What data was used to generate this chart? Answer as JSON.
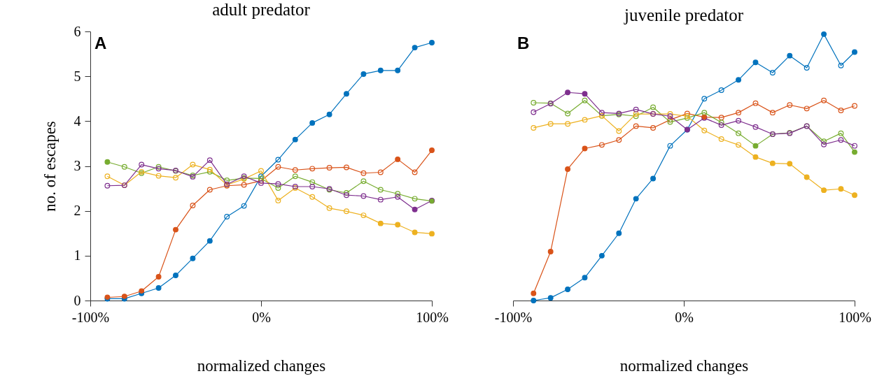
{
  "chart_data": [
    {
      "type": "line",
      "title": "adult predator",
      "xlabel": "normalized changes",
      "ylabel": "no. of escapes",
      "annotations": [
        "A"
      ],
      "x": [
        -90,
        -80,
        -70,
        -60,
        -50,
        -40,
        -30,
        -20,
        -10,
        0,
        10,
        20,
        30,
        40,
        50,
        60,
        70,
        80,
        90,
        100
      ],
      "xlim": [
        -100,
        100
      ],
      "xticks": [
        {
          "value": -100,
          "label": "-100%"
        },
        {
          "value": 0,
          "label": "0%"
        },
        {
          "value": 100,
          "label": "100%"
        }
      ],
      "ylim": [
        0,
        6
      ],
      "yticks": [
        0,
        1,
        2,
        3,
        4,
        5,
        6
      ],
      "grid": false,
      "marker": "circle",
      "line_style": "solid",
      "series": [
        {
          "type": "line",
          "color": "#0072bd",
          "values": [
            0.04,
            0.04,
            0.16,
            0.28,
            0.56,
            0.94,
            1.33,
            1.87,
            2.11,
            2.77,
            3.14,
            3.59,
            3.96,
            4.15,
            4.61,
            5.05,
            5.13,
            5.13,
            5.64,
            5.75
          ]
        },
        {
          "type": "line",
          "color": "#d95319",
          "values": [
            0.07,
            0.09,
            0.21,
            0.53,
            1.58,
            2.12,
            2.47,
            2.56,
            2.58,
            2.67,
            2.98,
            2.91,
            2.94,
            2.96,
            2.97,
            2.84,
            2.86,
            3.15,
            2.86,
            3.35
          ]
        },
        {
          "type": "line",
          "color": "#77ac30",
          "values": [
            3.09,
            2.98,
            2.84,
            2.98,
            2.89,
            2.79,
            2.87,
            2.68,
            2.73,
            2.72,
            2.51,
            2.77,
            2.64,
            2.47,
            2.4,
            2.66,
            2.47,
            2.38,
            2.27,
            2.22
          ]
        },
        {
          "type": "line",
          "color": "#edb120",
          "values": [
            2.77,
            2.57,
            2.87,
            2.78,
            2.74,
            3.03,
            2.92,
            2.58,
            2.71,
            2.89,
            2.23,
            2.51,
            2.31,
            2.06,
            1.99,
            1.9,
            1.72,
            1.69,
            1.52,
            1.49
          ]
        },
        {
          "type": "line",
          "color": "#7e2f8e",
          "values": [
            2.56,
            2.57,
            3.03,
            2.94,
            2.9,
            2.76,
            3.13,
            2.59,
            2.77,
            2.62,
            2.6,
            2.54,
            2.54,
            2.49,
            2.35,
            2.33,
            2.25,
            2.31,
            2.03,
            2.23
          ]
        },
        {
          "type": "scatter",
          "color": "#0072bd",
          "values": [
            0.04,
            0.04,
            0.16,
            0.28,
            0.56,
            0.94,
            1.33,
            null,
            null,
            null,
            null,
            3.59,
            3.96,
            4.15,
            4.61,
            5.05,
            5.13,
            5.13,
            5.64,
            5.75
          ]
        },
        {
          "type": "scatter",
          "color": "#d95319",
          "values": [
            0.07,
            0.09,
            0.21,
            0.53,
            1.58,
            null,
            null,
            null,
            null,
            null,
            null,
            null,
            null,
            null,
            null,
            null,
            null,
            3.15,
            null,
            3.35
          ]
        },
        {
          "type": "scatter",
          "color": "#77ac30",
          "values": [
            3.09,
            null,
            null,
            null,
            null,
            null,
            null,
            null,
            null,
            null,
            null,
            null,
            null,
            null,
            null,
            null,
            null,
            null,
            null,
            2.22
          ]
        },
        {
          "type": "scatter",
          "color": "#edb120",
          "values": [
            null,
            null,
            null,
            null,
            null,
            null,
            null,
            null,
            null,
            null,
            null,
            null,
            null,
            null,
            null,
            null,
            1.72,
            1.69,
            1.52,
            1.49
          ]
        },
        {
          "type": "scatter",
          "color": "#7e2f8e",
          "values": [
            null,
            null,
            null,
            null,
            null,
            null,
            null,
            null,
            null,
            null,
            null,
            null,
            null,
            null,
            null,
            null,
            null,
            null,
            2.03,
            null
          ]
        }
      ]
    },
    {
      "type": "line",
      "title": "juvenile predator",
      "xlabel": "normalized changes",
      "annotations": [
        "B"
      ],
      "x": [
        -88,
        -78,
        -68,
        -58,
        -48,
        -38,
        -28,
        -18,
        -8,
        2,
        12,
        22,
        32,
        42,
        52,
        62,
        72,
        82,
        92,
        100
      ],
      "xlim": [
        -100,
        100
      ],
      "xticks": [
        {
          "value": -100,
          "label": "-100%"
        },
        {
          "value": 0,
          "label": "0%"
        },
        {
          "value": 100,
          "label": "100%"
        }
      ],
      "ylim": [
        0,
        6
      ],
      "tick_labels": "x",
      "grid": false,
      "marker": "circle",
      "line_style": "solid",
      "series": [
        {
          "type": "line",
          "color": "#0072bd",
          "values": [
            0.0,
            0.06,
            0.25,
            0.51,
            1.0,
            1.5,
            2.27,
            2.72,
            3.45,
            3.81,
            4.5,
            4.69,
            4.92,
            5.31,
            5.08,
            5.46,
            5.19,
            5.94,
            5.24,
            5.54
          ]
        },
        {
          "type": "line",
          "color": "#d95319",
          "values": [
            0.16,
            1.09,
            2.93,
            3.39,
            3.47,
            3.58,
            3.89,
            3.85,
            4.03,
            4.17,
            4.09,
            4.08,
            4.19,
            4.4,
            4.19,
            4.36,
            4.28,
            4.46,
            4.24,
            4.34
          ]
        },
        {
          "type": "line",
          "color": "#77ac30",
          "values": [
            4.41,
            4.4,
            4.17,
            4.46,
            4.12,
            4.15,
            4.11,
            4.31,
            3.98,
            4.07,
            4.19,
            3.97,
            3.73,
            3.45,
            3.71,
            3.74,
            3.89,
            3.55,
            3.73,
            3.31
          ]
        },
        {
          "type": "line",
          "color": "#edb120",
          "values": [
            3.85,
            3.94,
            3.94,
            4.03,
            4.12,
            3.78,
            4.16,
            4.16,
            4.16,
            4.11,
            3.79,
            3.6,
            3.47,
            3.2,
            3.06,
            3.05,
            2.75,
            2.46,
            2.49,
            2.35
          ]
        },
        {
          "type": "line",
          "color": "#7e2f8e",
          "values": [
            4.2,
            4.39,
            4.64,
            4.61,
            4.19,
            4.17,
            4.26,
            4.16,
            4.11,
            3.81,
            4.07,
            3.91,
            4.01,
            3.87,
            3.71,
            3.73,
            3.89,
            3.48,
            3.58,
            3.45
          ]
        },
        {
          "type": "scatter",
          "color": "#0072bd",
          "values": [
            0.0,
            0.06,
            0.25,
            0.51,
            1.0,
            1.5,
            2.27,
            2.72,
            null,
            null,
            null,
            null,
            4.92,
            5.31,
            null,
            5.46,
            null,
            5.94,
            null,
            5.54
          ]
        },
        {
          "type": "scatter",
          "color": "#d95319",
          "values": [
            0.16,
            1.09,
            2.93,
            3.39,
            null,
            null,
            null,
            null,
            null,
            null,
            4.09,
            null,
            null,
            null,
            null,
            null,
            null,
            null,
            null,
            null
          ]
        },
        {
          "type": "scatter",
          "color": "#77ac30",
          "values": [
            null,
            null,
            null,
            null,
            null,
            null,
            null,
            null,
            null,
            null,
            null,
            null,
            null,
            3.45,
            null,
            null,
            null,
            null,
            null,
            3.31
          ]
        },
        {
          "type": "scatter",
          "color": "#edb120",
          "values": [
            null,
            null,
            null,
            null,
            null,
            null,
            null,
            null,
            null,
            null,
            null,
            null,
            null,
            3.2,
            3.06,
            3.05,
            2.75,
            2.46,
            2.49,
            2.35
          ]
        },
        {
          "type": "scatter",
          "color": "#7e2f8e",
          "values": [
            null,
            null,
            4.64,
            4.61,
            null,
            null,
            null,
            null,
            null,
            3.81,
            null,
            null,
            null,
            null,
            null,
            null,
            null,
            null,
            null,
            null
          ]
        }
      ]
    }
  ]
}
